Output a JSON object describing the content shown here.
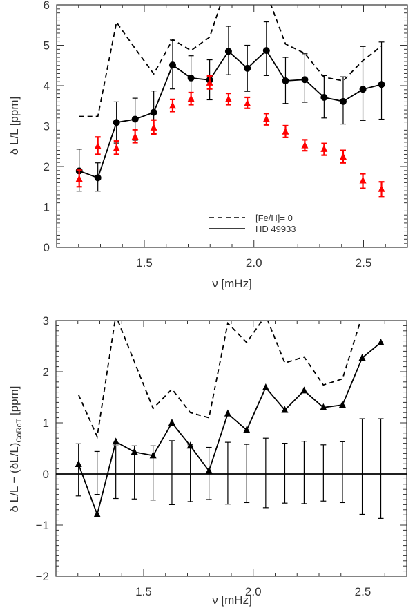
{
  "chart_data": [
    {
      "type": "line",
      "title": "",
      "xlabel": "ν [mHz]",
      "ylabel": "δ L/L [ppm]",
      "xlim": [
        1.1,
        2.7
      ],
      "ylim": [
        0,
        6
      ],
      "xticks": [
        1.5,
        2.0,
        2.5
      ],
      "xtick_labels": [
        "1.5",
        "2.0",
        "2.5"
      ],
      "yticks": [
        0,
        1,
        2,
        3,
        4,
        5,
        6
      ],
      "ytick_labels": [
        "0",
        "1",
        "2",
        "3",
        "4",
        "5",
        "6"
      ],
      "x_minor_step": 0.1,
      "y_minor_step": 0.1,
      "grid": false,
      "x": [
        1.203,
        1.288,
        1.373,
        1.458,
        1.543,
        1.629,
        1.713,
        1.798,
        1.884,
        1.97,
        2.057,
        2.144,
        2.232,
        2.32,
        2.407,
        2.497,
        2.582
      ],
      "series": [
        {
          "name": "[Fe/H]= 0",
          "linestyle": "dashed",
          "color": "#000000",
          "values": [
            3.24,
            3.24,
            5.57,
            4.92,
            4.29,
            5.14,
            4.87,
            5.2,
            6.6,
            6.8,
            6.3,
            5.03,
            4.8,
            4.21,
            4.12,
            4.62,
            4.98
          ]
        },
        {
          "name": "HD 49933",
          "linestyle": "solid",
          "marker": "circle",
          "color": "#000000",
          "values": [
            1.89,
            1.72,
            3.09,
            3.17,
            3.34,
            4.51,
            4.19,
            4.14,
            4.85,
            4.43,
            4.87,
            4.12,
            4.15,
            3.71,
            3.61,
            3.91,
            4.03
          ],
          "err_upper": [
            2.43,
            2.09,
            3.6,
            3.69,
            3.87,
            5.13,
            4.74,
            4.64,
            5.47,
            5.0,
            5.58,
            4.7,
            4.79,
            4.25,
            4.22,
            4.97,
            5.08
          ],
          "err_lower": [
            1.39,
            1.39,
            2.58,
            2.65,
            2.81,
            3.92,
            3.64,
            3.65,
            4.27,
            3.86,
            4.25,
            3.56,
            3.59,
            3.2,
            3.05,
            3.14,
            3.17
          ]
        },
        {
          "linestyle": "none",
          "marker": "triangle",
          "color": "#ff0000",
          "values": [
            1.69,
            2.5,
            2.45,
            2.73,
            2.96,
            3.5,
            3.67,
            4.07,
            3.66,
            3.56,
            3.17,
            2.86,
            2.52,
            2.43,
            2.24,
            1.65,
            1.44
          ],
          "err_upper": [
            1.91,
            2.73,
            2.63,
            2.91,
            3.15,
            3.66,
            3.83,
            4.24,
            3.81,
            3.71,
            3.31,
            3.01,
            2.66,
            2.57,
            2.4,
            1.82,
            1.62
          ],
          "err_lower": [
            1.5,
            2.3,
            2.3,
            2.59,
            2.8,
            3.36,
            3.53,
            3.92,
            3.53,
            3.44,
            3.03,
            2.72,
            2.39,
            2.28,
            2.09,
            1.46,
            1.26
          ]
        }
      ],
      "legend": {
        "placement": "bottom-center",
        "entries": [
          {
            "label": "[Fe/H]= 0",
            "linestyle": "dashed"
          },
          {
            "label": "HD 49933",
            "linestyle": "solid"
          }
        ]
      }
    },
    {
      "type": "line",
      "title": "",
      "xlabel": "ν [mHz]",
      "ylabel_main": "δ L/L − (δL/L)",
      "ylabel_sub": "CoRoT",
      "ylabel_unit": " [ppm]",
      "xlim": [
        1.1,
        2.7
      ],
      "ylim": [
        -2,
        3
      ],
      "xticks": [
        1.5,
        2.0,
        2.5
      ],
      "xtick_labels": [
        "1.5",
        "2.0",
        "2.5"
      ],
      "yticks": [
        -2,
        -1,
        0,
        1,
        2,
        3
      ],
      "ytick_labels": [
        "−2",
        "−1",
        "0",
        "1",
        "2",
        "3"
      ],
      "x_minor_step": 0.1,
      "y_minor_step": 0.1,
      "grid": false,
      "reference_line_y": 0,
      "x": [
        1.203,
        1.288,
        1.373,
        1.458,
        1.543,
        1.629,
        1.713,
        1.798,
        1.884,
        1.97,
        2.057,
        2.144,
        2.232,
        2.32,
        2.407,
        2.497,
        2.582
      ],
      "series": [
        {
          "linestyle": "dashed",
          "color": "#000000",
          "values": [
            1.55,
            0.73,
            3.1,
            2.19,
            1.28,
            1.66,
            1.2,
            1.1,
            2.95,
            2.57,
            3.1,
            2.17,
            2.29,
            1.74,
            1.86,
            3.1,
            3.5
          ]
        },
        {
          "linestyle": "solid",
          "marker": "triangle",
          "color": "#000000",
          "values": [
            0.19,
            -0.79,
            0.63,
            0.43,
            0.36,
            1.0,
            0.55,
            0.06,
            1.18,
            0.86,
            1.69,
            1.25,
            1.63,
            1.3,
            1.35,
            2.27,
            2.57
          ]
        },
        {
          "linestyle": "none",
          "marker": "errorbar",
          "color": "#000000",
          "values": [
            0,
            0,
            0,
            0,
            0,
            0,
            0,
            0,
            0,
            0,
            0,
            0,
            0,
            0,
            0,
            0,
            0
          ],
          "err_upper": [
            0.59,
            0.44,
            0.55,
            0.55,
            0.55,
            0.65,
            0.57,
            0.52,
            0.62,
            0.58,
            0.7,
            0.6,
            0.64,
            0.57,
            0.63,
            1.08,
            1.08
          ],
          "err_lower": [
            -0.43,
            -0.4,
            -0.48,
            -0.49,
            -0.51,
            -0.6,
            -0.54,
            -0.5,
            -0.59,
            -0.56,
            -0.66,
            -0.57,
            -0.58,
            -0.53,
            -0.56,
            -0.79,
            -0.87
          ]
        }
      ]
    }
  ]
}
